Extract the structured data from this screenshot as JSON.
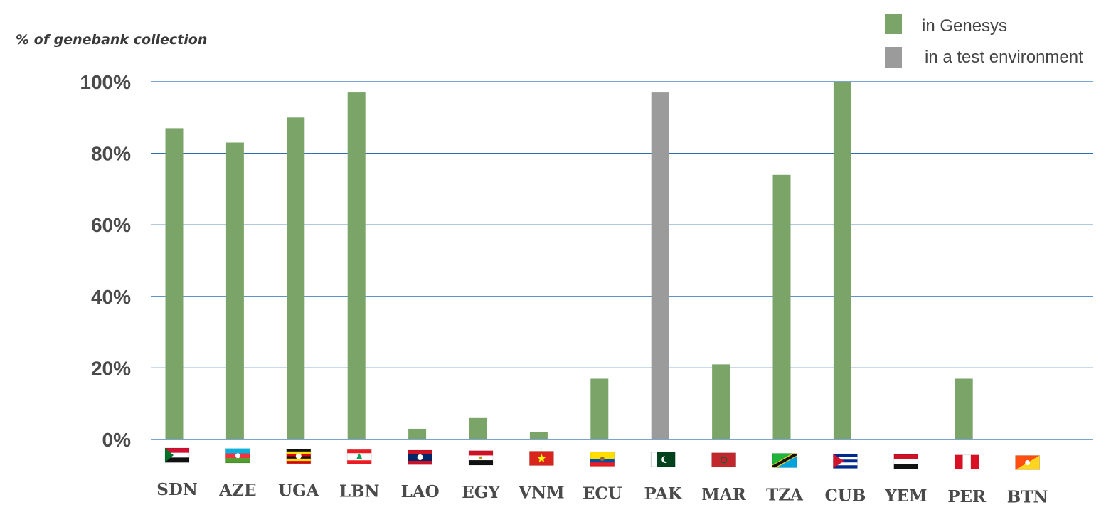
{
  "chart_data": {
    "type": "bar",
    "ylabel": "% of genebank collection",
    "xlabel": "",
    "ylim": [
      0,
      100
    ],
    "yticks": [
      "0%",
      "20%",
      "40%",
      "60%",
      "80%",
      "100%"
    ],
    "ytick_values": [
      0,
      20,
      40,
      60,
      80,
      100
    ],
    "grid": true,
    "legend_position": "top-right",
    "legend": [
      {
        "name": "in Genesys",
        "color": "#7ba568"
      },
      {
        "name": "in a test environment",
        "color": "#9b9b9b"
      }
    ],
    "categories": [
      "SDN",
      "AZE",
      "UGA",
      "LBN",
      "LAO",
      "EGY",
      "VNM",
      "ECU",
      "PAK",
      "MAR",
      "TZA",
      "CUB",
      "YEM",
      "PER",
      "BTN"
    ],
    "series": [
      {
        "name": "in Genesys",
        "values": [
          87,
          83,
          90,
          97,
          3,
          6,
          2,
          17,
          0,
          21,
          74,
          100,
          0,
          17,
          0
        ]
      },
      {
        "name": "in a test environment",
        "values": [
          0,
          0,
          0,
          0,
          0,
          0,
          0,
          0,
          97,
          0,
          0,
          0,
          0,
          0,
          0
        ]
      }
    ],
    "flag_icons": [
      "flag-sudan-icon",
      "flag-azerbaijan-icon",
      "flag-uganda-icon",
      "flag-lebanon-icon",
      "flag-laos-icon",
      "flag-egypt-icon",
      "flag-vietnam-icon",
      "flag-ecuador-icon",
      "flag-pakistan-icon",
      "flag-morocco-icon",
      "flag-tanzania-icon",
      "flag-cuba-icon",
      "flag-yemen-icon",
      "flag-peru-icon",
      "flag-bhutan-icon"
    ]
  }
}
